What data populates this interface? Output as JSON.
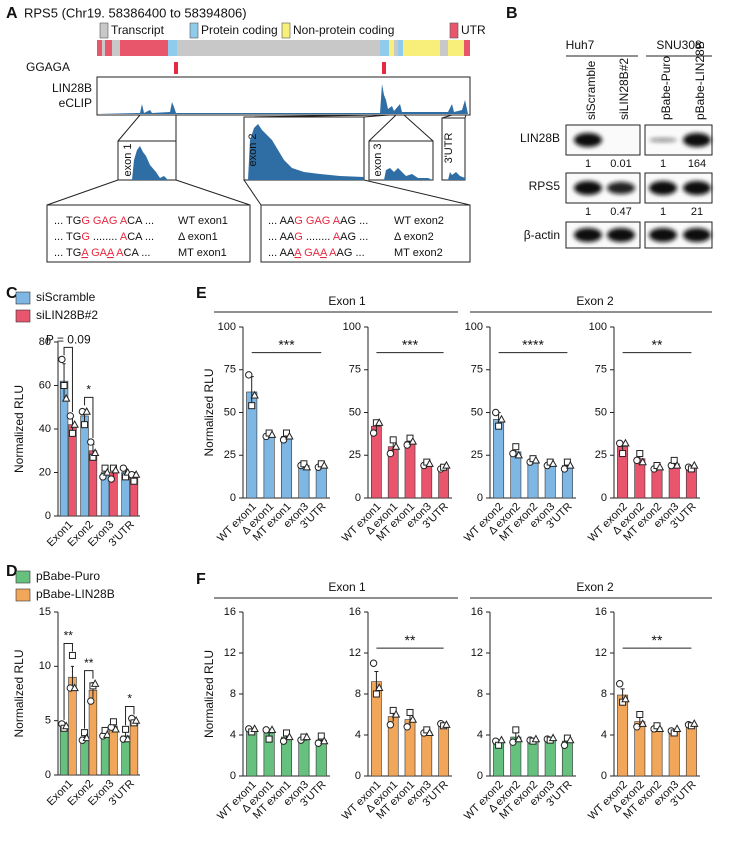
{
  "labels": [
    "A",
    "B",
    "C",
    "D",
    "E",
    "F"
  ],
  "panel_a": {
    "title": "RPS5 (Chr19. 58386400 to 58394806)",
    "legend": [
      {
        "name": "Transcript",
        "color": "#c8c8c8"
      },
      {
        "name": "Protein coding",
        "color": "#8fcbea"
      },
      {
        "name": "Non-protein coding",
        "color": "#f7ef7a"
      },
      {
        "name": "UTR",
        "color": "#e8566b"
      }
    ],
    "motif": "GGAGA",
    "track": [
      "LIN28B",
      "eCLIP"
    ],
    "exons": [
      "exon 1",
      "exon 2",
      "exon 3",
      "3'UTR"
    ],
    "sequences": [
      [
        {
          "parts": [
            {
              "t": "... TG"
            },
            {
              "t": "G GAG A",
              "red": true
            },
            {
              "t": "CA ..."
            }
          ],
          "label": "WT exon1"
        },
        {
          "parts": [
            {
              "t": "... TG"
            },
            {
              "t": "G",
              "red": true
            },
            {
              "t": " ........ "
            },
            {
              "t": "A",
              "red": true
            },
            {
              "t": "CA ..."
            }
          ],
          "label": "Δ exon1"
        },
        {
          "parts": [
            {
              "t": "... TG"
            },
            {
              "t": "A",
              "red": true,
              "u": true
            },
            {
              "t": " GA",
              "red": true
            },
            {
              "t": "A",
              "red": true,
              "u": true
            },
            {
              "t": " A",
              "red": true
            },
            {
              "t": "CA ..."
            }
          ],
          "label": "MT exon1"
        }
      ],
      [
        {
          "parts": [
            {
              "t": "... AA"
            },
            {
              "t": "G GAG A",
              "red": true
            },
            {
              "t": "AG ..."
            }
          ],
          "label": "WT exon2"
        },
        {
          "parts": [
            {
              "t": "... AA"
            },
            {
              "t": "G",
              "red": true
            },
            {
              "t": " ........ "
            },
            {
              "t": "A",
              "red": true
            },
            {
              "t": "AG ..."
            }
          ],
          "label": "Δ exon2"
        },
        {
          "parts": [
            {
              "t": "... AA"
            },
            {
              "t": "A",
              "red": true,
              "u": true
            },
            {
              "t": " GA",
              "red": true
            },
            {
              "t": "A",
              "red": true,
              "u": true
            },
            {
              "t": " A",
              "red": true
            },
            {
              "t": "AG ..."
            }
          ],
          "label": "MT exon2"
        }
      ]
    ]
  },
  "panel_b": {
    "cells": [
      "Huh7",
      "SNU308"
    ],
    "lanes": [
      "siScramble",
      "siLIN28B#2",
      "pBabe-Puro",
      "pBabe-LIN28B"
    ],
    "proteins": [
      "LIN28B",
      "RPS5",
      "β-actin"
    ],
    "quant": [
      [
        1,
        0.01,
        1,
        164
      ],
      [
        1,
        0.47,
        1,
        21
      ]
    ]
  },
  "panel_e": {
    "groups": [
      "Exon 1",
      "Exon 2"
    ]
  },
  "panel_f": {
    "groups": [
      "Exon 1",
      "Exon 2"
    ]
  },
  "chart_data": [
    {
      "type": "bar",
      "ylabel": "Normalized RLU",
      "categories": [
        "Exon1",
        "Exon2",
        "Exon3",
        "3'UTR"
      ],
      "ylim": [
        0,
        80
      ],
      "yticks": [
        0,
        20,
        40,
        60,
        80
      ],
      "series": [
        {
          "name": "siScramble",
          "color": "#7eb6e4",
          "values": [
            62,
            46,
            20,
            20
          ],
          "errors": [
            8,
            3,
            2,
            2
          ],
          "points": [
            [
              72,
              60,
              54
            ],
            [
              48,
              42,
              48
            ],
            [
              18,
              22,
              20
            ],
            [
              22,
              18,
              20
            ]
          ]
        },
        {
          "name": "siLIN28B#2",
          "color": "#e8556d",
          "values": [
            42,
            30,
            20,
            18
          ],
          "errors": [
            4,
            3,
            3,
            2
          ],
          "points": [
            [
              46,
              38,
              42
            ],
            [
              34,
              27,
              29
            ],
            [
              17,
              22,
              21
            ],
            [
              19,
              16,
              19
            ]
          ]
        }
      ],
      "annotations": [
        "P = 0.09",
        "*"
      ]
    },
    {
      "type": "bar",
      "ylabel": "Normalized RLU",
      "categories": [
        "Exon1",
        "Exon2",
        "Exon3",
        "3'UTR"
      ],
      "ylim": [
        0,
        15
      ],
      "yticks": [
        0,
        5,
        10,
        15
      ],
      "series": [
        {
          "name": "pBabe-Puro",
          "color": "#66c07e",
          "values": [
            4.5,
            3.5,
            3.8,
            3.6
          ],
          "errors": [
            0.2,
            0.3,
            0.3,
            0.4
          ],
          "points": [
            [
              4.7,
              4.3,
              4.5
            ],
            [
              3.2,
              3.9,
              3.4
            ],
            [
              3.6,
              4.1,
              3.7
            ],
            [
              3.3,
              4.2,
              3.3
            ]
          ]
        },
        {
          "name": "pBabe-LIN28B",
          "color": "#f2a65a",
          "values": [
            9.0,
            7.8,
            4.5,
            5.0
          ],
          "errors": [
            1.0,
            0.7,
            0.3,
            0.2
          ],
          "points": [
            [
              8.0,
              11,
              8
            ],
            [
              6.8,
              8.2,
              8.4
            ],
            [
              4.4,
              4.9,
              4.2
            ],
            [
              5.2,
              4.8,
              5.0
            ]
          ]
        }
      ],
      "annotations": [
        "**",
        "**",
        "*"
      ]
    },
    {
      "type": "bar",
      "ylabel": "Normalized RLU",
      "categories": [
        "WT exon1",
        "Δ exon1",
        "MT exon1",
        "exon3",
        "3'UTR"
      ],
      "ylim": [
        0,
        100
      ],
      "yticks": [
        0,
        25,
        50,
        75,
        100
      ],
      "color": "#7eb6e4",
      "values": [
        62,
        37,
        36,
        19,
        19
      ],
      "errors": [
        9,
        2,
        2,
        1,
        1
      ],
      "points": [
        [
          72,
          54,
          60
        ],
        [
          36,
          38,
          37
        ],
        [
          34,
          38,
          36
        ],
        [
          19,
          20,
          18
        ],
        [
          18,
          20,
          19
        ]
      ],
      "annotations": [
        "***"
      ]
    },
    {
      "type": "bar",
      "categories": [
        "WT exon1",
        "Δ exon1",
        "MT exon1",
        "exon3",
        "3'UTR"
      ],
      "ylim": [
        0,
        100
      ],
      "yticks": [
        0,
        25,
        50,
        75,
        100
      ],
      "color": "#e8556d",
      "values": [
        42,
        30,
        33,
        20,
        18
      ],
      "errors": [
        3,
        3,
        2,
        1,
        1
      ],
      "points": [
        [
          38,
          44,
          44
        ],
        [
          26,
          34,
          30
        ],
        [
          31,
          35,
          33
        ],
        [
          19,
          21,
          20
        ],
        [
          17,
          18,
          19
        ]
      ],
      "annotations": [
        "***"
      ]
    },
    {
      "type": "bar",
      "categories": [
        "WT exon2",
        "Δ exon2",
        "MT exon2",
        "exon3",
        "3'UTR"
      ],
      "ylim": [
        0,
        100
      ],
      "yticks": [
        0,
        25,
        50,
        75,
        100
      ],
      "color": "#7eb6e4",
      "values": [
        46,
        27,
        22,
        20,
        19
      ],
      "errors": [
        4,
        3,
        1,
        1,
        1
      ],
      "points": [
        [
          50,
          42,
          46
        ],
        [
          26,
          30,
          25
        ],
        [
          21,
          23,
          22
        ],
        [
          19,
          21,
          20
        ],
        [
          17,
          21,
          19
        ]
      ],
      "annotations": [
        "****"
      ]
    },
    {
      "type": "bar",
      "categories": [
        "WT exon2",
        "Δ exon2",
        "MT exon2",
        "exon3",
        "3'UTR"
      ],
      "ylim": [
        0,
        100
      ],
      "yticks": [
        0,
        25,
        50,
        75,
        100
      ],
      "color": "#e8556d",
      "values": [
        30,
        23,
        18,
        20,
        18
      ],
      "errors": [
        2,
        2,
        1,
        1,
        0.5
      ],
      "points": [
        [
          32,
          26,
          32
        ],
        [
          22,
          26,
          21
        ],
        [
          17,
          19,
          18
        ],
        [
          19,
          22,
          19
        ],
        [
          18,
          17,
          19
        ]
      ],
      "annotations": [
        "**"
      ]
    },
    {
      "type": "bar",
      "ylabel": "Normalized RLU",
      "categories": [
        "WT exon1",
        "Δ exon1",
        "MT exon1",
        "exon3",
        "3'UTR"
      ],
      "ylim": [
        0,
        16
      ],
      "yticks": [
        0,
        4,
        8,
        12,
        16
      ],
      "color": "#66c07e",
      "values": [
        4.5,
        4.2,
        3.8,
        3.7,
        3.5
      ],
      "errors": [
        0.1,
        0.3,
        0.3,
        0.1,
        0.2
      ],
      "points": [
        [
          4.6,
          4.3,
          4.6
        ],
        [
          4.5,
          3.6,
          4.5
        ],
        [
          3.4,
          4.2,
          3.8
        ],
        [
          3.5,
          3.8,
          3.8
        ],
        [
          3.2,
          3.9,
          3.4
        ]
      ]
    },
    {
      "type": "bar",
      "categories": [
        "WT exon1",
        "Δ exon1",
        "MT exon1",
        "exon3",
        "3'UTR"
      ],
      "ylim": [
        0,
        16
      ],
      "yticks": [
        0,
        4,
        8,
        12,
        16
      ],
      "color": "#f2a65a",
      "values": [
        9.2,
        5.8,
        5.5,
        4.3,
        5.0
      ],
      "errors": [
        1.0,
        0.5,
        0.5,
        0.1,
        0.1
      ],
      "points": [
        [
          11,
          8,
          8.6
        ],
        [
          5.0,
          6.4,
          6.0
        ],
        [
          4.8,
          6.2,
          5.5
        ],
        [
          4.2,
          4.5,
          4.2
        ],
        [
          5.1,
          4.9,
          5.0
        ]
      ],
      "annotations": [
        "**"
      ]
    },
    {
      "type": "bar",
      "categories": [
        "WT exon2",
        "Δ exon2",
        "MT exon2",
        "exon3",
        "3'UTR"
      ],
      "ylim": [
        0,
        16
      ],
      "yticks": [
        0,
        4,
        8,
        12,
        16
      ],
      "color": "#66c07e",
      "values": [
        3.3,
        3.8,
        3.5,
        3.6,
        3.4
      ],
      "errors": [
        0.15,
        0.4,
        0.1,
        0.1,
        0.2
      ],
      "points": [
        [
          3.4,
          3.0,
          3.5
        ],
        [
          3.3,
          4.5,
          3.6
        ],
        [
          3.5,
          3.4,
          3.6
        ],
        [
          3.6,
          3.5,
          3.7
        ],
        [
          3.0,
          3.7,
          3.5
        ]
      ]
    },
    {
      "type": "bar",
      "categories": [
        "WT exon2",
        "Δ exon2",
        "MT exon2",
        "exon3",
        "3'UTR"
      ],
      "ylim": [
        0,
        16
      ],
      "yticks": [
        0,
        4,
        8,
        12,
        16
      ],
      "color": "#f2a65a",
      "values": [
        7.9,
        5.3,
        4.7,
        4.4,
        5.0
      ],
      "errors": [
        0.6,
        0.6,
        0.1,
        0.1,
        0.1
      ],
      "points": [
        [
          9,
          7.2,
          7.5
        ],
        [
          4.8,
          6.0,
          5.1
        ],
        [
          4.6,
          4.9,
          4.6
        ],
        [
          4.4,
          4.2,
          4.6
        ],
        [
          5.0,
          4.9,
          5.1
        ]
      ],
      "annotations": [
        "**"
      ]
    }
  ]
}
